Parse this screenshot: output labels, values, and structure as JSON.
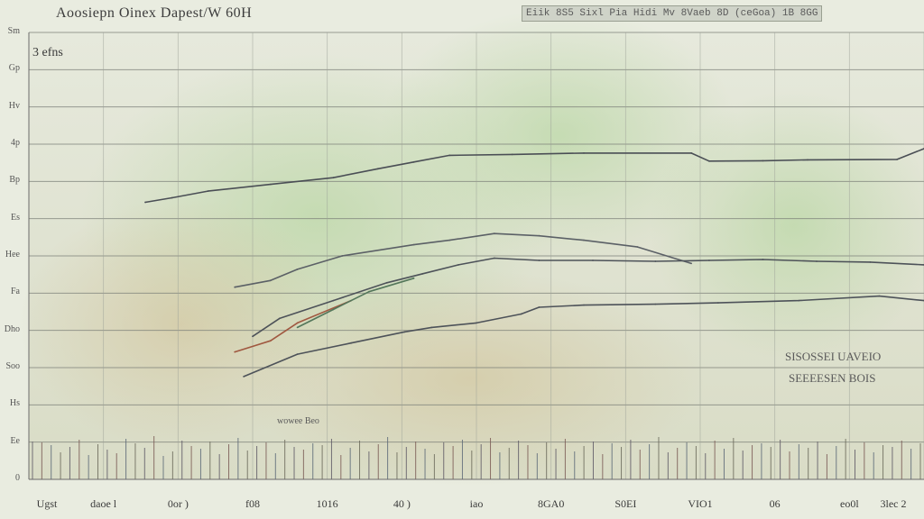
{
  "chart_data": {
    "type": "line",
    "title": "Aoosiepn Oinex Dapest/W 60H",
    "subtitle": "Eiik 8S5 Sixl Pia Hidi Mv 8Vaeb 8D (ceGoa) 1B 8GG",
    "panel_label": "3 efns",
    "grid": true,
    "legend": "none",
    "ylim": [
      0,
      100
    ],
    "xlim": [
      0,
      100
    ],
    "y_tick_labels": [
      "Sm",
      "Gp",
      "Hv",
      "4p",
      "Bp",
      "Es",
      "Hee",
      "Fa",
      "Dho",
      "Soo",
      "Hs",
      "Ee",
      "0"
    ],
    "x_tick_labels": [
      "Ugst",
      "daoe l",
      "0or )",
      "f08",
      "1016",
      "40 )",
      "iao",
      "8GA0",
      "S0EI",
      "VIO1",
      "06",
      "eo0l",
      "3lec 2"
    ],
    "x_sub_labels": [
      "",
      "",
      "",
      "",
      "",
      "",
      "",
      "",
      "",
      "",
      "",
      "",
      ""
    ],
    "annotations": [
      "SISOSSEI UAVEIO",
      "SEEEESEN BOIS",
      "wowee Beo"
    ],
    "series": [
      {
        "color": "#4a4e55",
        "x": [
          13,
          16,
          20,
          27,
          34,
          39,
          43,
          47,
          54,
          62,
          74,
          76,
          82,
          87,
          97,
          100
        ],
        "y": [
          62,
          63,
          64.5,
          66,
          67.5,
          69.5,
          71,
          72.5,
          72.7,
          73,
          73,
          71.2,
          71.3,
          71.5,
          71.6,
          74
        ]
      },
      {
        "color": "#5b6066",
        "x": [
          23,
          27,
          30,
          35,
          43,
          47,
          52,
          57,
          62,
          68,
          74
        ],
        "y": [
          43,
          44.5,
          47,
          50,
          52.5,
          53.5,
          55,
          54.5,
          53.5,
          52,
          48.3
        ]
      },
      {
        "color": "#4d5259",
        "x": [
          25,
          28,
          34,
          40,
          44,
          48,
          52,
          57,
          63,
          70,
          76,
          82,
          88,
          94,
          100
        ],
        "y": [
          32,
          36,
          40,
          44,
          46,
          48,
          49.5,
          49,
          49,
          48.8,
          49,
          49.2,
          48.8,
          48.6,
          48
        ]
      },
      {
        "color": "#4d5259",
        "x": [
          24,
          30,
          36,
          42,
          45,
          50,
          55,
          57,
          62,
          70,
          77,
          86,
          95,
          100
        ],
        "y": [
          23,
          28,
          30.5,
          33,
          34,
          35,
          37,
          38.5,
          39,
          39.2,
          39.5,
          40,
          41,
          40
        ]
      },
      {
        "color": "#a05840",
        "x": [
          23,
          27,
          30,
          36
        ],
        "y": [
          28.5,
          31,
          35,
          40
        ]
      },
      {
        "color": "#53765a",
        "x": [
          30,
          34,
          38,
          43
        ],
        "y": [
          34,
          38,
          42,
          45
        ]
      }
    ],
    "spikes": [
      42,
      41,
      38,
      30,
      36,
      44,
      27,
      39,
      33,
      29,
      45,
      40,
      35,
      48,
      26,
      31,
      43,
      37,
      34,
      42,
      28,
      39,
      46,
      32,
      37,
      41,
      29,
      44,
      36,
      33,
      40,
      38,
      45,
      27,
      35,
      43,
      31,
      39,
      47,
      30,
      36,
      42,
      34,
      28,
      41,
      37,
      44,
      32,
      39,
      46,
      30,
      35,
      43,
      38,
      29,
      41,
      34,
      45,
      31,
      37,
      42,
      28,
      40,
      36,
      44,
      33,
      39,
      47,
      30,
      35,
      41,
      37,
      29,
      43,
      34,
      46,
      32,
      38,
      40,
      36,
      44,
      31,
      39,
      35,
      42,
      28,
      37,
      45,
      33,
      41,
      30,
      38,
      36,
      43,
      34,
      40
    ]
  }
}
